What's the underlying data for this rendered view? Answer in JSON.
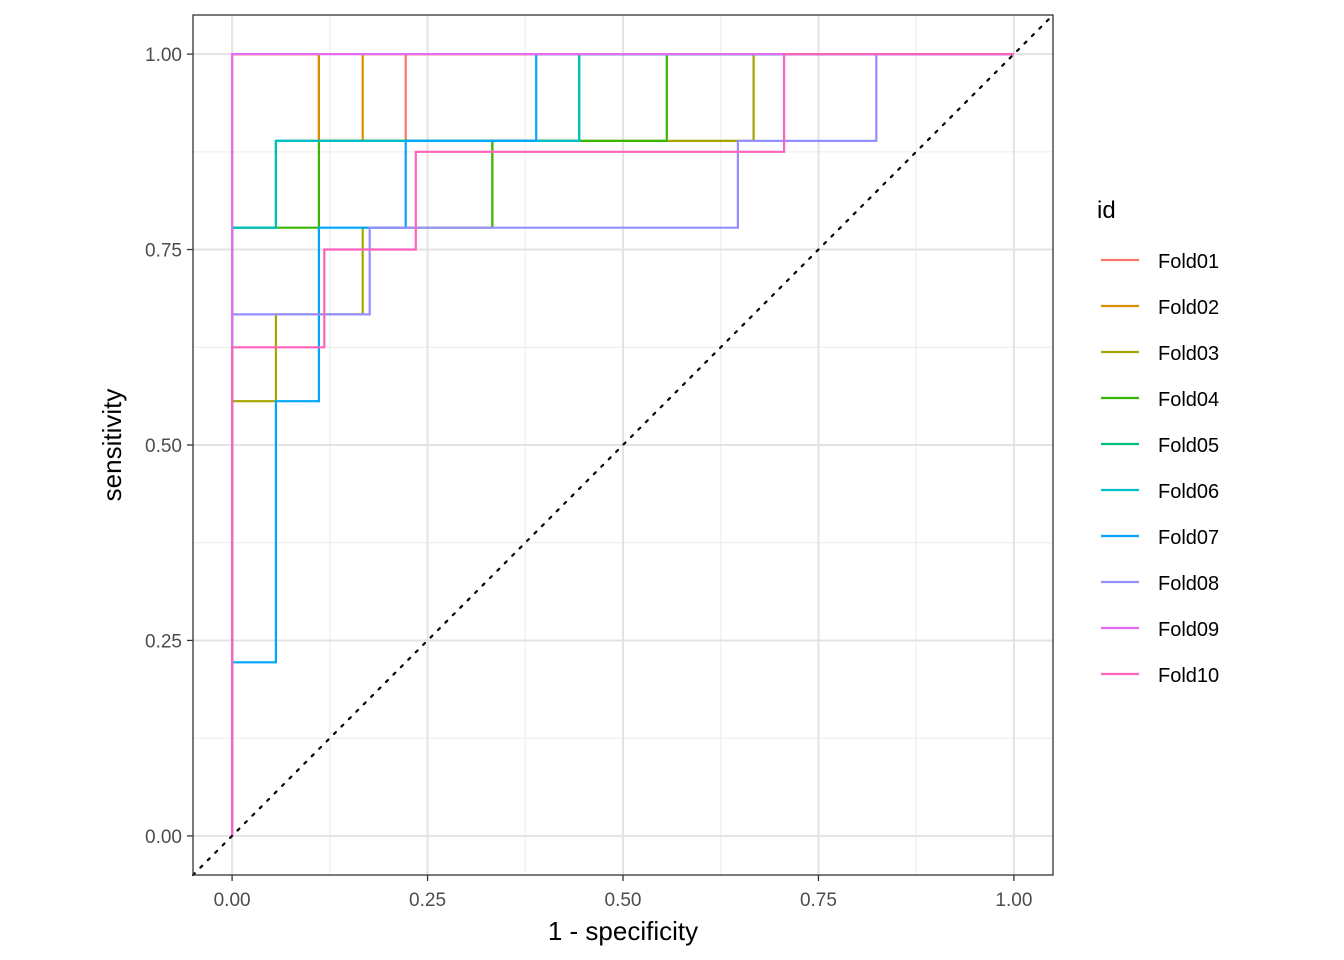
{
  "chart_data": {
    "type": "line",
    "title": "",
    "xlabel": "1 - specificity",
    "ylabel": "sensitivity",
    "xlim": [
      -0.05,
      1.05
    ],
    "ylim": [
      -0.05,
      1.05
    ],
    "x_ticks": [
      0.0,
      0.25,
      0.5,
      0.75,
      1.0
    ],
    "y_ticks": [
      0.0,
      0.25,
      0.5,
      0.75,
      1.0
    ],
    "x_tick_labels": [
      "0.00",
      "0.25",
      "0.50",
      "0.75",
      "1.00"
    ],
    "y_tick_labels": [
      "0.00",
      "0.25",
      "0.50",
      "0.75",
      "1.00"
    ],
    "grid": true,
    "reference_line": {
      "style": "dotted",
      "color": "#000000",
      "from": [
        -0.05,
        -0.05
      ],
      "to": [
        1.05,
        1.05
      ]
    },
    "legend": {
      "title": "id",
      "position": "right"
    },
    "series": [
      {
        "name": "Fold01",
        "color": "#F8766D",
        "points": [
          [
            0,
            0
          ],
          [
            0,
            1
          ],
          [
            0.111,
            1
          ],
          [
            0.111,
            0.889
          ],
          [
            0.222,
            0.889
          ],
          [
            0.222,
            1
          ],
          [
            1,
            1
          ]
        ]
      },
      {
        "name": "Fold02",
        "color": "#D89000",
        "points": [
          [
            0,
            0
          ],
          [
            0,
            1
          ],
          [
            0.111,
            1
          ],
          [
            0.111,
            0.889
          ],
          [
            0.167,
            0.889
          ],
          [
            0.167,
            1
          ],
          [
            1,
            1
          ]
        ]
      },
      {
        "name": "Fold03",
        "color": "#A3A500",
        "points": [
          [
            0,
            0
          ],
          [
            0,
            0.556
          ],
          [
            0.056,
            0.556
          ],
          [
            0.056,
            0.667
          ],
          [
            0.167,
            0.667
          ],
          [
            0.167,
            0.778
          ],
          [
            0.333,
            0.778
          ],
          [
            0.333,
            0.889
          ],
          [
            0.667,
            0.889
          ],
          [
            0.667,
            1
          ],
          [
            1,
            1
          ]
        ]
      },
      {
        "name": "Fold04",
        "color": "#39B600",
        "points": [
          [
            0,
            0
          ],
          [
            0,
            0.778
          ],
          [
            0.111,
            0.778
          ],
          [
            0.111,
            0.889
          ],
          [
            0.333,
            0.889
          ],
          [
            0.333,
            0.778
          ],
          [
            0.333,
            0.889
          ],
          [
            0.556,
            0.889
          ],
          [
            0.556,
            1
          ],
          [
            1,
            1
          ]
        ]
      },
      {
        "name": "Fold05",
        "color": "#00BF7D",
        "points": [
          [
            0,
            0
          ],
          [
            0,
            0.778
          ],
          [
            0.056,
            0.778
          ],
          [
            0.056,
            0.889
          ],
          [
            0.444,
            0.889
          ],
          [
            0.444,
            1
          ],
          [
            1,
            1
          ]
        ]
      },
      {
        "name": "Fold06",
        "color": "#00BFC4",
        "points": [
          [
            0,
            0
          ],
          [
            0,
            0.778
          ],
          [
            0.056,
            0.778
          ],
          [
            0.056,
            0.889
          ],
          [
            0.444,
            0.889
          ],
          [
            0.444,
            1
          ],
          [
            1,
            1
          ]
        ]
      },
      {
        "name": "Fold07",
        "color": "#00A5FF",
        "points": [
          [
            0,
            0
          ],
          [
            0,
            0.222
          ],
          [
            0.056,
            0.222
          ],
          [
            0.056,
            0.556
          ],
          [
            0.111,
            0.556
          ],
          [
            0.111,
            0.778
          ],
          [
            0.222,
            0.778
          ],
          [
            0.222,
            0.889
          ],
          [
            0.389,
            0.889
          ],
          [
            0.389,
            1
          ],
          [
            1,
            1
          ]
        ]
      },
      {
        "name": "Fold08",
        "color": "#9590FF",
        "points": [
          [
            0,
            0
          ],
          [
            0,
            0.667
          ],
          [
            0.176,
            0.667
          ],
          [
            0.176,
            0.778
          ],
          [
            0.647,
            0.778
          ],
          [
            0.647,
            0.889
          ],
          [
            0.824,
            0.889
          ],
          [
            0.824,
            1
          ],
          [
            1,
            1
          ]
        ]
      },
      {
        "name": "Fold09",
        "color": "#E76BF3",
        "points": [
          [
            0,
            0
          ],
          [
            0,
            1
          ],
          [
            1,
            1
          ]
        ]
      },
      {
        "name": "Fold10",
        "color": "#FF62BC",
        "points": [
          [
            0,
            0
          ],
          [
            0,
            0.625
          ],
          [
            0.118,
            0.625
          ],
          [
            0.118,
            0.75
          ],
          [
            0.235,
            0.75
          ],
          [
            0.235,
            0.875
          ],
          [
            0.706,
            0.875
          ],
          [
            0.706,
            1
          ],
          [
            1,
            1
          ]
        ]
      }
    ]
  }
}
